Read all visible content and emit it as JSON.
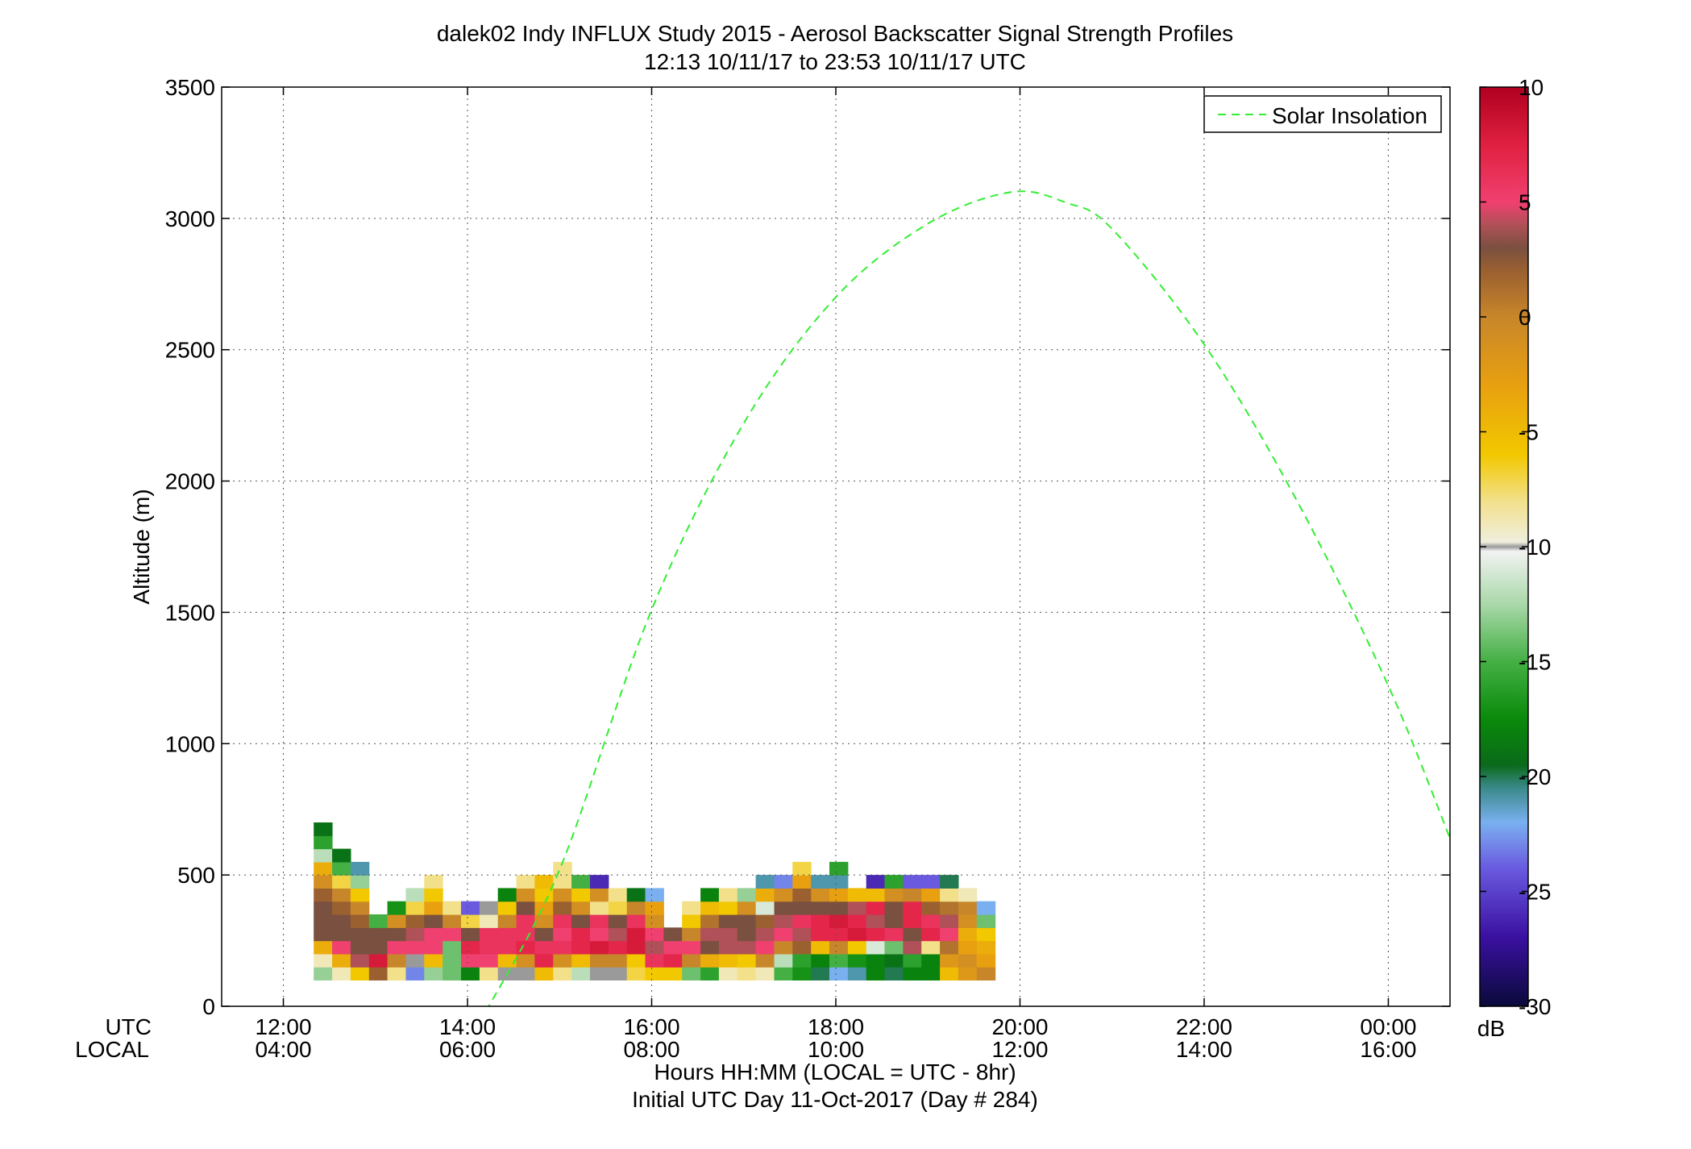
{
  "chart_data": {
    "type": "heatmap",
    "title": "dalek02 Indy INFLUX Study 2015 - Aerosol Backscatter Signal Strength Profiles",
    "subtitle": "12:13 10/11/17 to 23:53 10/11/17  UTC",
    "ylabel": "Altitude (m)",
    "xlabel": "Hours HH:MM  (LOCAL = UTC - 8hr)",
    "xlabel2": "Initial UTC Day 11-Oct-2017 (Day # 284)",
    "x_row_labels": [
      "UTC",
      "LOCAL"
    ],
    "x_range_hours": [
      11.33,
      24.67
    ],
    "ylim": [
      0,
      3500
    ],
    "y_ticks": [
      0,
      500,
      1000,
      1500,
      2000,
      2500,
      3000,
      3500
    ],
    "x_ticks": [
      {
        "hour": 12,
        "utc": "12:00",
        "local": "04:00"
      },
      {
        "hour": 14,
        "utc": "14:00",
        "local": "06:00"
      },
      {
        "hour": 16,
        "utc": "16:00",
        "local": "08:00"
      },
      {
        "hour": 18,
        "utc": "18:00",
        "local": "10:00"
      },
      {
        "hour": 20,
        "utc": "20:00",
        "local": "12:00"
      },
      {
        "hour": 22,
        "utc": "22:00",
        "local": "14:00"
      },
      {
        "hour": 24,
        "utc": "00:00",
        "local": "16:00"
      }
    ],
    "grid": true,
    "legend": {
      "label": "Solar Insolation",
      "placement": "top-right",
      "color": "#33ee33"
    },
    "colorbar": {
      "unit": "dB",
      "range": [
        -30,
        10
      ],
      "ticks": [
        10,
        5,
        0,
        -5,
        -10,
        -15,
        -20,
        -25,
        -30
      ],
      "stops": [
        {
          "v": -30,
          "c": "#0a0a3a"
        },
        {
          "v": -27,
          "c": "#3a10a0"
        },
        {
          "v": -24,
          "c": "#6a5ae0"
        },
        {
          "v": -22,
          "c": "#7ab0f0"
        },
        {
          "v": -20.5,
          "c": "#3a8a8a"
        },
        {
          "v": -19.5,
          "c": "#0a6a1a"
        },
        {
          "v": -17.5,
          "c": "#0a8a0a"
        },
        {
          "v": -15,
          "c": "#44b044"
        },
        {
          "v": -12.5,
          "c": "#aad8aa"
        },
        {
          "v": -10.2,
          "c": "#f2f2f2"
        },
        {
          "v": -10,
          "c": "#9a9a9a"
        },
        {
          "v": -9.8,
          "c": "#f0eedd"
        },
        {
          "v": -8,
          "c": "#f2e08a"
        },
        {
          "v": -6,
          "c": "#f2c800"
        },
        {
          "v": -3,
          "c": "#e8a010"
        },
        {
          "v": 0,
          "c": "#c8862a"
        },
        {
          "v": 2,
          "c": "#9a6030"
        },
        {
          "v": 3,
          "c": "#7a5040"
        },
        {
          "v": 4,
          "c": "#b05058"
        },
        {
          "v": 5,
          "c": "#f04070"
        },
        {
          "v": 7.5,
          "c": "#e02040"
        },
        {
          "v": 10,
          "c": "#b00020"
        }
      ]
    },
    "solar_curve": {
      "name": "Solar Insolation",
      "points": [
        [
          14.2,
          -20
        ],
        [
          15,
          520
        ],
        [
          16,
          1510
        ],
        [
          17,
          2220
        ],
        [
          18,
          2700
        ],
        [
          19,
          2980
        ],
        [
          19.9,
          3100
        ],
        [
          20.5,
          3060
        ],
        [
          21,
          2960
        ],
        [
          22,
          2520
        ],
        [
          23,
          1930
        ],
        [
          24,
          1220
        ],
        [
          24.67,
          640
        ]
      ]
    },
    "heatmap": {
      "y_bottom": 100,
      "bin_height": 50,
      "x_start_hour": 12.33,
      "col_width_hours": 0.2,
      "columns": [
        [
          -13,
          -9,
          -4,
          3,
          3,
          3,
          2,
          -1,
          -4,
          -12,
          -16,
          -19
        ],
        [
          -9,
          -4,
          5,
          3,
          3,
          2,
          0,
          -7,
          -15,
          -19
        ],
        [
          -6,
          4,
          3,
          3,
          2,
          0,
          -6,
          -13,
          -21
        ],
        [
          2,
          8,
          3,
          3,
          -15
        ],
        [
          -8,
          0,
          5,
          3,
          -1,
          -17
        ],
        [
          -23,
          -10,
          5,
          4,
          2,
          -7,
          -12
        ],
        [
          -13,
          -5,
          5,
          5,
          3,
          -3,
          -6,
          -8
        ],
        [
          -14,
          -14,
          -14,
          5,
          0,
          -8
        ],
        [
          -18,
          5,
          7,
          3,
          -7,
          -24
        ],
        [
          -8,
          5,
          6,
          6,
          -9,
          -10
        ],
        [
          -10,
          -5,
          6,
          6,
          0,
          -6,
          -18
        ],
        [
          -10,
          -1,
          7,
          6,
          6,
          3,
          -1,
          -8
        ],
        [
          -5,
          7,
          6,
          3,
          -1,
          -3,
          -6,
          -5
        ],
        [
          -8,
          -1,
          6,
          5,
          6,
          2,
          -1,
          -8,
          -8
        ],
        [
          -12,
          -5,
          7,
          7,
          3,
          -1,
          -6,
          -15
        ],
        [
          -10,
          0,
          8,
          5,
          6,
          -8,
          -1,
          -26
        ],
        [
          -10,
          0,
          7,
          4,
          3,
          -7,
          -8
        ],
        [
          -7,
          -6,
          8,
          8,
          6,
          0,
          -19
        ],
        [
          -6,
          6,
          4,
          5,
          -1,
          -3,
          -22
        ],
        [
          -6,
          7,
          5,
          3
        ],
        [
          -14,
          0,
          5,
          0,
          -6,
          -8
        ],
        [
          -16,
          -4,
          3,
          4,
          1,
          -5,
          -18
        ],
        [
          -9,
          -5,
          4,
          4,
          3,
          -6,
          -8
        ],
        [
          -8,
          -6,
          4,
          3,
          3,
          -1,
          -13
        ],
        [
          -9,
          0,
          5,
          4,
          2,
          -11,
          -4,
          -21
        ],
        [
          -15,
          -12,
          0,
          5,
          4,
          3,
          -1,
          -23
        ],
        [
          -17,
          -16,
          2,
          4,
          6,
          3,
          2,
          -3,
          -7
        ],
        [
          -20,
          -18,
          -5,
          7,
          7,
          3,
          -1,
          -21
        ],
        [
          -22,
          -15,
          0,
          7,
          8,
          3,
          -3,
          -21,
          -16
        ],
        [
          -21,
          -17,
          -6,
          8,
          7,
          4,
          -5
        ],
        [
          -18,
          -18,
          -11,
          7,
          4,
          7,
          -5,
          -26
        ],
        [
          -20,
          -19,
          -14,
          6,
          3,
          3,
          -1,
          -16
        ],
        [
          -18,
          -16,
          4,
          3,
          7,
          7,
          0,
          -24
        ],
        [
          -18,
          -18,
          -8,
          7,
          6,
          2,
          -3,
          -24
        ],
        [
          -5,
          -2,
          1,
          5,
          4,
          1,
          -8,
          -20
        ],
        [
          -2,
          -1,
          -3,
          -4,
          -1,
          0,
          -9
        ],
        [
          0,
          -3,
          -4,
          -6,
          -14,
          -22
        ]
      ]
    }
  }
}
